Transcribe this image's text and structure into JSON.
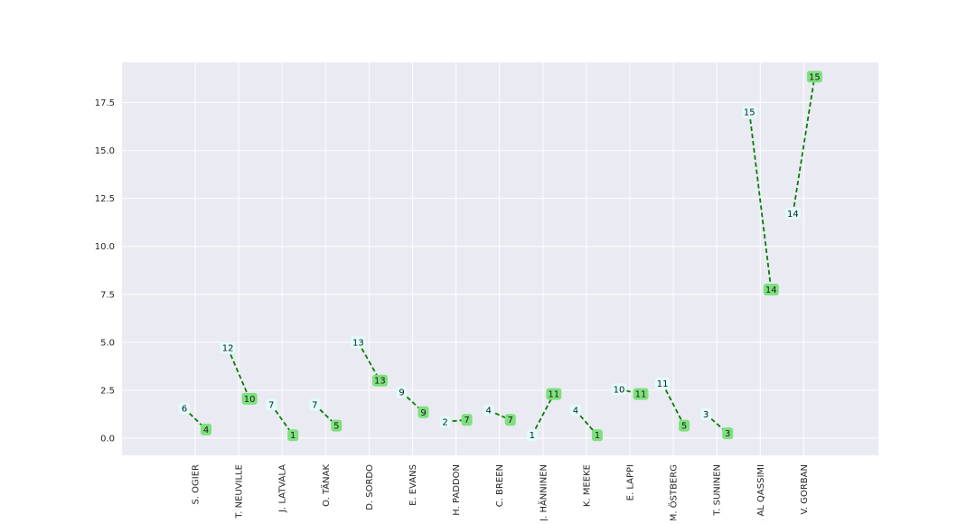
{
  "chart_data": {
    "type": "line",
    "title": "",
    "xlabel": "",
    "ylabel": "",
    "categories": [
      "S. OGIER",
      "T. NEUVILLE",
      "J. LATVALA",
      "O. TÄNAK",
      "D. SORDO",
      "E. EVANS",
      "H. PADDON",
      "C. BREEN",
      "J. HÄNNINEN",
      "K. MEEKE",
      "E. LAPPI",
      "M. ÖSTBERG",
      "T. SUNINEN",
      "K. AL QASSIMI",
      "V. GORBAN"
    ],
    "ylim": [
      -0.9,
      19.6
    ],
    "yticks": [
      0.0,
      2.5,
      5.0,
      7.5,
      10.0,
      12.5,
      15.0,
      17.5
    ],
    "ytick_labels": [
      "0.0",
      "2.5",
      "5.0",
      "7.5",
      "10.0",
      "12.5",
      "15.0",
      "17.5"
    ],
    "grid": true,
    "series": [
      {
        "values_start": [
          1.55,
          4.7,
          1.75,
          1.75,
          5.0,
          2.4,
          0.85,
          1.45,
          0.15,
          1.45,
          2.55,
          2.85,
          1.25,
          17.0,
          11.7
        ],
        "values_end": [
          0.45,
          2.05,
          0.15,
          0.65,
          3.0,
          1.35,
          0.95,
          0.95,
          2.3,
          0.15,
          2.3,
          0.65,
          0.25,
          7.75,
          18.85
        ],
        "labels_start": [
          "6",
          "12",
          "7",
          "7",
          "13",
          "9",
          "2",
          "4",
          "1",
          "4",
          "10",
          "11",
          "3",
          "15",
          "14"
        ],
        "labels_end": [
          "4",
          "10",
          "1",
          "5",
          "13",
          "9",
          "7",
          "7",
          "11",
          "1",
          "11",
          "5",
          "3",
          "14",
          "15"
        ]
      }
    ],
    "colors": {
      "plot_background": "#eaeaf2",
      "grid": "#ffffff",
      "line": "#008000",
      "start_box": "#e0fcfc",
      "end_box": "#7ee07e"
    }
  }
}
